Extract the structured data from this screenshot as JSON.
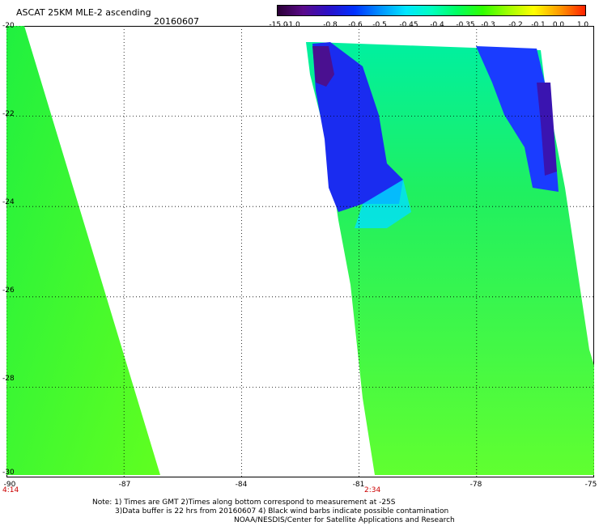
{
  "header": {
    "title": "ASCAT 25KM MLE-2 ascending",
    "date": "20160607"
  },
  "colorbar": {
    "labels": [
      "-15.0",
      "-1.0",
      "-0.8",
      "-0.6",
      "-0.5",
      "-0.45",
      "-0.4",
      "-0.35",
      "-0.3",
      "-0.2",
      "-0.1",
      "0.0",
      "1.0"
    ],
    "colors": [
      "#2a0035",
      "#5a0a8a",
      "#2a10c8",
      "#0030ff",
      "#0090ff",
      "#00e6ff",
      "#00ffc0",
      "#00ff60",
      "#30ff00",
      "#a0ff00",
      "#ffff00",
      "#ff9900",
      "#ff2000"
    ]
  },
  "map": {
    "lat_labels": [
      "-20",
      "-22",
      "-24",
      "-26",
      "-28",
      "-30"
    ],
    "lon_labels": [
      "-90",
      "-87",
      "-84",
      "-81",
      "-78",
      "-75"
    ],
    "lat_range": [
      -30,
      -20
    ],
    "lon_range": [
      -90,
      -75
    ],
    "grid": true,
    "swath_times": [
      "4:14",
      "2:34"
    ]
  },
  "notes": {
    "line1": "Note: 1) Times are GMT 2)Times along bottom correspond to measurement at -25S",
    "line2": "3)Data buffer is 22 hrs from 20160607 4) Black wind barbs indicate possible contamination",
    "line3": "NOAA/NESDIS/Center for Satellite Applications and Research"
  }
}
